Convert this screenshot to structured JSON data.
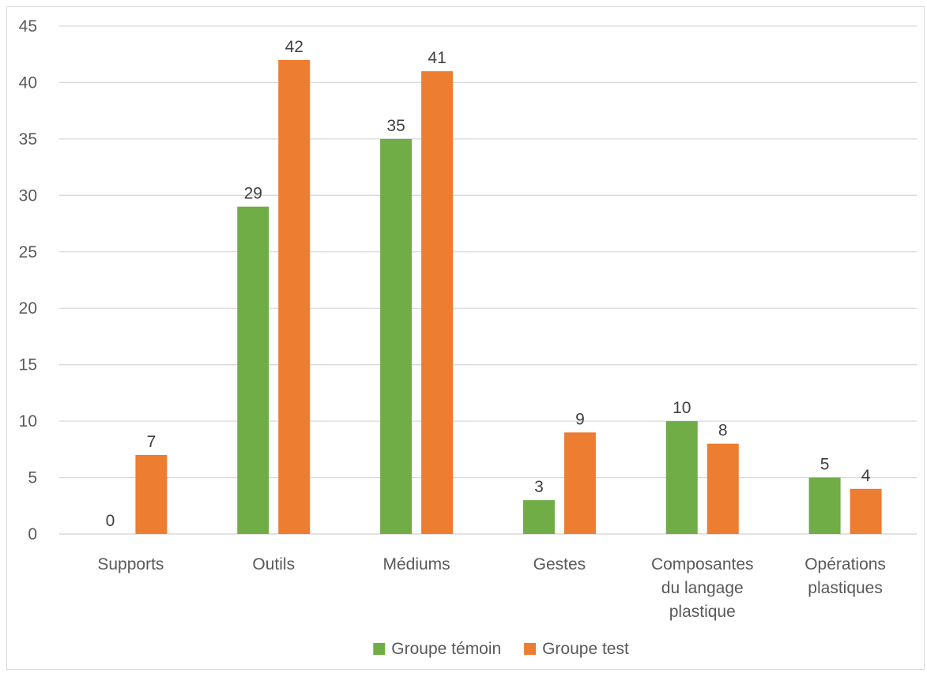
{
  "chart_data": {
    "type": "bar",
    "title": "",
    "xlabel": "",
    "ylabel": "",
    "ylim": [
      0,
      45
    ],
    "yticks": [
      0,
      5,
      10,
      15,
      20,
      25,
      30,
      35,
      40,
      45
    ],
    "grid": true,
    "legend_position": "bottom",
    "categories": [
      [
        "Supports"
      ],
      [
        "Outils"
      ],
      [
        "Médiums"
      ],
      [
        "Gestes"
      ],
      [
        "Composantes",
        "du langage",
        "plastique"
      ],
      [
        "Opérations",
        "plastiques"
      ]
    ],
    "series": [
      {
        "name": "Groupe témoin",
        "color": "#70ad47",
        "values": [
          0,
          29,
          35,
          3,
          10,
          5
        ]
      },
      {
        "name": "Groupe test",
        "color": "#ed7d31",
        "values": [
          7,
          42,
          41,
          9,
          8,
          4
        ]
      }
    ],
    "colors": {
      "gridline": "#d9d9d9",
      "axis_line": "#d9d9d9",
      "tick_text": "#595959",
      "data_label_text": "#404040"
    }
  }
}
